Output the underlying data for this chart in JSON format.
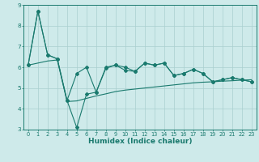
{
  "title": "",
  "xlabel": "Humidex (Indice chaleur)",
  "x": [
    0,
    1,
    2,
    3,
    4,
    5,
    6,
    7,
    8,
    9,
    10,
    11,
    12,
    13,
    14,
    15,
    16,
    17,
    18,
    19,
    20,
    21,
    22,
    23
  ],
  "line1": [
    6.1,
    8.7,
    6.6,
    6.4,
    4.4,
    5.7,
    6.0,
    4.8,
    6.0,
    6.1,
    6.0,
    5.8,
    6.2,
    6.1,
    6.2,
    5.6,
    5.7,
    5.9,
    5.7,
    5.3,
    5.4,
    5.5,
    5.4,
    5.3
  ],
  "line2": [
    6.1,
    8.7,
    6.6,
    6.4,
    4.4,
    3.1,
    4.7,
    4.8,
    5.95,
    6.1,
    5.85,
    5.8,
    6.2,
    6.1,
    6.2,
    5.6,
    5.7,
    5.9,
    5.7,
    5.3,
    5.4,
    5.5,
    5.4,
    5.3
  ],
  "line3": [
    6.1,
    6.2,
    6.3,
    6.35,
    4.35,
    4.38,
    4.5,
    4.62,
    4.72,
    4.83,
    4.9,
    4.95,
    5.0,
    5.05,
    5.1,
    5.15,
    5.2,
    5.25,
    5.28,
    5.3,
    5.33,
    5.35,
    5.38,
    5.4
  ],
  "ylim": [
    3,
    9
  ],
  "xlim": [
    -0.5,
    23.5
  ],
  "yticks": [
    3,
    4,
    5,
    6,
    7,
    8,
    9
  ],
  "xticks": [
    0,
    1,
    2,
    3,
    4,
    5,
    6,
    7,
    8,
    9,
    10,
    11,
    12,
    13,
    14,
    15,
    16,
    17,
    18,
    19,
    20,
    21,
    22,
    23
  ],
  "line_color": "#1a7a6e",
  "bg_color": "#ceeaea",
  "grid_color": "#aacfcf",
  "markersize": 2.0,
  "linewidth": 0.8,
  "xlabel_fontsize": 6.5,
  "tick_fontsize": 4.8
}
